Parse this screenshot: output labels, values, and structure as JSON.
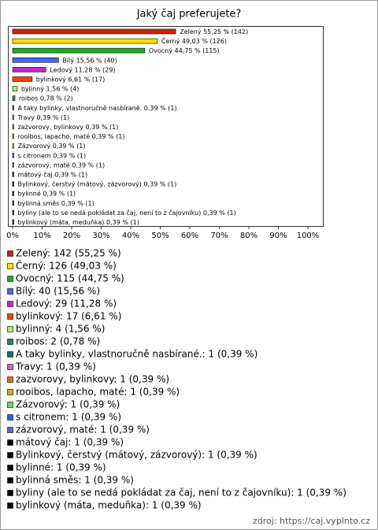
{
  "chart_data": {
    "type": "bar",
    "orientation": "horizontal",
    "title": "Jaký čaj preferujete?",
    "source": "zdroj: https://caj.vyplnto.cz",
    "categories": [
      "Zelený",
      "Černý",
      "Ovocný",
      "Bílý",
      "Ledový",
      "bylinkový",
      "bylinný",
      "roibos",
      "A taky bylinky, vlastnoručně nasbírané.",
      "Travy",
      "zazvorovy, bylinkovy",
      "rooibos, lapacho, maté",
      "Zázvorový",
      "s citronem",
      "zázvorový, maté",
      "mátový čaj",
      "Bylinkový, čerstvý (mátový, zázvorový)",
      "bylinné",
      "bylinná směs",
      "byliny (ale to se nedá pokládat za čaj, není to z čajovníku)",
      "bylinkový (máta, meduňka)"
    ],
    "values": [
      55.25,
      49.03,
      44.75,
      15.56,
      11.28,
      6.61,
      1.56,
      0.78,
      0.39,
      0.39,
      0.39,
      0.39,
      0.39,
      0.39,
      0.39,
      0.39,
      0.39,
      0.39,
      0.39,
      0.39,
      0.39
    ],
    "value_labels": [
      "55,25 % (142)",
      "49,03 % (126)",
      "44,75 % (115)",
      "15,56 % (40)",
      "11,28 % (29)",
      "6,61 % (17)",
      "1,56 % (4)",
      "0,78 % (2)",
      "0,39 % (1)",
      "0,39 % (1)",
      "0,39 % (1)",
      "0,39 % (1)",
      "0,39 % (1)",
      "0,39 % (1)",
      "0,39 % (1)",
      "0,39 % (1)",
      "0,39 % (1)",
      "0,39 % (1)",
      "0,39 % (1)",
      "0,39 % (1)",
      "0,39 % (1)"
    ],
    "legend_labels": [
      "Zelený: 142 (55,25 %)",
      "Černý: 126 (49,03 %)",
      "Ovocný: 115 (44,75 %)",
      "Bílý: 40 (15,56 %)",
      "Ledový: 29 (11,28 %)",
      "bylinkový: 17 (6,61 %)",
      "bylinný: 4 (1,56 %)",
      "roibos: 2 (0,78 %)",
      "A taky bylinky, vlastnoručně nasbírané.: 1 (0,39 %)",
      "Travy: 1 (0,39 %)",
      "zazvorovy, bylinkovy: 1 (0,39 %)",
      "rooibos, lapacho, maté: 1 (0,39 %)",
      "Zázvorový: 1 (0,39 %)",
      "s citronem: 1 (0,39 %)",
      "zázvorový, maté: 1 (0,39 %)",
      "mátový čaj: 1 (0,39 %)",
      "Bylinkový, čerstvý (mátový, zázvorový): 1 (0,39 %)",
      "bylinné: 1 (0,39 %)",
      "bylinná směs: 1 (0,39 %)",
      "byliny (ale to se nedá pokládat za čaj, není to z čajovníku): 1 (0,39 %)",
      "bylinkový (máta, meduňka): 1 (0,39 %)"
    ],
    "colors": [
      "#cc2200",
      "#ffdd00",
      "#22aa22",
      "#4466ee",
      "#cc22cc",
      "#ee4400",
      "#aaee66",
      "#228855",
      "#226688",
      "#cc66aa",
      "#ee6600",
      "#ddaa00",
      "#66dd44",
      "#2266dd",
      "#5566cc",
      "#000000",
      "#000000",
      "#000000",
      "#000000",
      "#000000",
      "#000000"
    ],
    "xlim": [
      0,
      100
    ],
    "xticks": [
      {
        "value": 0,
        "label": "0%"
      },
      {
        "value": 10,
        "label": "10%"
      },
      {
        "value": 20,
        "label": "20%"
      },
      {
        "value": 30,
        "label": "30%"
      },
      {
        "value": 40,
        "label": "40%"
      },
      {
        "value": 50,
        "label": "50%"
      },
      {
        "value": 60,
        "label": "60%"
      },
      {
        "value": 70,
        "label": "70%"
      },
      {
        "value": 80,
        "label": "80%"
      },
      {
        "value": 90,
        "label": "90%"
      },
      {
        "value": 100,
        "label": "100%"
      }
    ]
  }
}
